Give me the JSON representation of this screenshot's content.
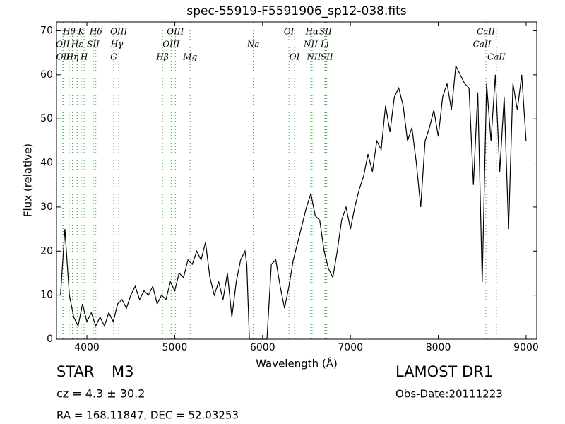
{
  "chart_data": {
    "type": "line",
    "title": "spec-55919-F5591906_sp12-038.fits",
    "xlabel": "Wavelength (Å)",
    "ylabel": "Flux (relative)",
    "xlim": [
      3654,
      9121
    ],
    "ylim": [
      0,
      72
    ],
    "xticks": [
      4000,
      5000,
      6000,
      7000,
      8000,
      9000
    ],
    "yticks": [
      0,
      10,
      20,
      30,
      40,
      50,
      60,
      70
    ],
    "x": [
      3700,
      3750,
      3800,
      3850,
      3900,
      3950,
      4000,
      4050,
      4100,
      4150,
      4200,
      4250,
      4300,
      4350,
      4400,
      4450,
      4500,
      4550,
      4600,
      4650,
      4700,
      4750,
      4800,
      4850,
      4900,
      4950,
      5000,
      5050,
      5100,
      5150,
      5200,
      5250,
      5300,
      5350,
      5400,
      5450,
      5500,
      5550,
      5600,
      5650,
      5700,
      5750,
      5800,
      5820,
      5850,
      6050,
      6100,
      6150,
      6200,
      6250,
      6300,
      6350,
      6400,
      6450,
      6500,
      6550,
      6600,
      6650,
      6700,
      6750,
      6800,
      6850,
      6900,
      6950,
      7000,
      7050,
      7100,
      7150,
      7200,
      7250,
      7300,
      7350,
      7400,
      7450,
      7500,
      7550,
      7600,
      7650,
      7700,
      7750,
      7800,
      7850,
      7900,
      7950,
      8000,
      8050,
      8100,
      8150,
      8200,
      8250,
      8300,
      8350,
      8400,
      8450,
      8500,
      8550,
      8600,
      8650,
      8700,
      8750,
      8800,
      8850,
      8900,
      8950,
      9000
    ],
    "series": [
      {
        "name": "flux",
        "color": "#000000",
        "values": [
          10,
          25,
          10,
          5,
          3,
          8,
          4,
          6,
          3,
          5,
          3,
          6,
          4,
          8,
          9,
          7,
          10,
          12,
          9,
          11,
          10,
          12,
          8,
          10,
          9,
          13,
          11,
          15,
          14,
          18,
          17,
          20,
          18,
          22,
          14,
          10,
          13,
          9,
          15,
          5,
          13,
          18,
          20,
          17,
          0,
          0,
          17,
          18,
          12,
          7,
          12,
          18,
          22,
          26,
          30,
          33,
          28,
          27,
          20,
          16,
          14,
          20,
          27,
          30,
          25,
          30,
          34,
          37,
          42,
          38,
          45,
          43,
          53,
          47,
          55,
          57,
          53,
          45,
          48,
          40,
          30,
          45,
          48,
          52,
          46,
          55,
          58,
          52,
          62,
          60,
          58,
          57,
          35,
          56,
          13,
          58,
          45,
          60,
          38,
          55,
          25,
          58,
          52,
          60,
          45
        ]
      }
    ],
    "lines_color": "#33aa33",
    "lines": [
      {
        "name": "OII",
        "x": 3726
      },
      {
        "name": "OII",
        "x": 3729
      },
      {
        "name": "Hθ",
        "x": 3798
      },
      {
        "name": "Hη",
        "x": 3835
      },
      {
        "name": "Hε",
        "x": 3889
      },
      {
        "name": "K",
        "x": 3934
      },
      {
        "name": "H",
        "x": 3968
      },
      {
        "name": "SII",
        "x": 4072
      },
      {
        "name": "Hδ",
        "x": 4102
      },
      {
        "name": "G",
        "x": 4305
      },
      {
        "name": "Hγ",
        "x": 4341
      },
      {
        "name": "OIII",
        "x": 4363
      },
      {
        "name": "Hβ",
        "x": 4861
      },
      {
        "name": "OIII",
        "x": 4959
      },
      {
        "name": "OIII",
        "x": 5007
      },
      {
        "name": "Mg",
        "x": 5175
      },
      {
        "name": "Na",
        "x": 5894
      },
      {
        "name": "OI",
        "x": 6300
      },
      {
        "name": "OI",
        "x": 6364
      },
      {
        "name": "NII",
        "x": 6548
      },
      {
        "name": "Hα",
        "x": 6563
      },
      {
        "name": "NII",
        "x": 6583
      },
      {
        "name": "Li",
        "x": 6708
      },
      {
        "name": "SII",
        "x": 6716
      },
      {
        "name": "SII",
        "x": 6731
      },
      {
        "name": "CaII",
        "x": 8498
      },
      {
        "name": "CaII",
        "x": 8542
      },
      {
        "name": "CaII",
        "x": 8662
      }
    ]
  },
  "footer": {
    "class": "STAR",
    "subclass": "M3",
    "cz": "cz = 4.3 ± 30.2",
    "coords": "RA = 168.11847, DEC = 52.03253",
    "survey": "LAMOST DR1",
    "date": "Obs-Date:20111223"
  }
}
